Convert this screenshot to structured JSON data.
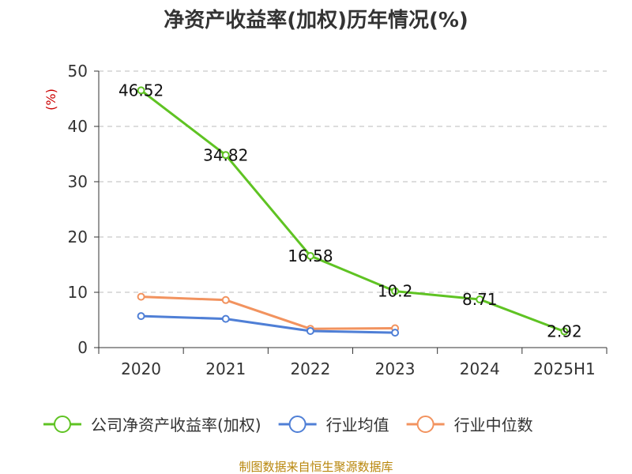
{
  "title": "净资产收益率(加权)历年情况(%)",
  "source": "制图数据来自恒生聚源数据库",
  "chart_data": {
    "type": "line",
    "title": "净资产收益率(加权)历年情况(%)",
    "ylabel": "(%)",
    "ylim": [
      0,
      50
    ],
    "yticks": [
      0,
      10,
      20,
      30,
      40,
      50
    ],
    "categories": [
      "2020",
      "2021",
      "2022",
      "2023",
      "2024",
      "2025H1"
    ],
    "grid": true,
    "legend": "bottom",
    "series": [
      {
        "name": "公司净资产收益率(加权)",
        "color": "#5fc323",
        "values": [
          46.52,
          34.82,
          16.58,
          10.2,
          8.71,
          2.92
        ],
        "labels": [
          "46.52",
          "34.82",
          "16.58",
          "10.2",
          "8.71",
          "2.92"
        ]
      },
      {
        "name": "行业均值",
        "color": "#4f7fd6",
        "values": [
          5.7,
          5.2,
          3.0,
          2.7,
          null,
          null
        ]
      },
      {
        "name": "行业中位数",
        "color": "#f2935f",
        "values": [
          9.2,
          8.6,
          3.4,
          3.5,
          null,
          null
        ]
      }
    ]
  }
}
